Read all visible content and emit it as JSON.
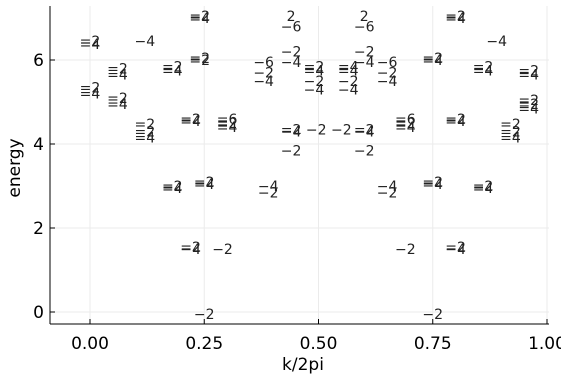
{
  "chart_data": {
    "type": "scatter",
    "title": "",
    "xlabel": "k/2pi",
    "ylabel": "energy",
    "xlim": [
      -0.08,
      1.0
    ],
    "ylim": [
      -0.25,
      7.05
    ],
    "xticks": [
      0.0,
      0.25,
      0.5,
      0.75,
      1.0
    ],
    "xtick_labels": [
      "0.00",
      "0.25",
      "0.50",
      "0.75",
      "1.00"
    ],
    "yticks": [
      0,
      2,
      4,
      6
    ],
    "ytick_labels": [
      "0",
      "2",
      "4",
      "6"
    ],
    "grid": true,
    "legend": "none",
    "marker": "text label (degeneracy) at each eigenvalue",
    "points": [
      {
        "x": 0.0,
        "y": 6.45,
        "label": "=2"
      },
      {
        "x": 0.0,
        "y": 6.38,
        "label": "=4"
      },
      {
        "x": 0.0,
        "y": 5.35,
        "label": "=2"
      },
      {
        "x": 0.0,
        "y": 5.2,
        "label": "=4"
      },
      {
        "x": 0.06,
        "y": 5.8,
        "label": "=2"
      },
      {
        "x": 0.06,
        "y": 5.65,
        "label": "=4"
      },
      {
        "x": 0.06,
        "y": 5.1,
        "label": "=2"
      },
      {
        "x": 0.06,
        "y": 4.95,
        "label": "=4"
      },
      {
        "x": 0.12,
        "y": 6.45,
        "label": "−4"
      },
      {
        "x": 0.12,
        "y": 4.48,
        "label": "=2"
      },
      {
        "x": 0.12,
        "y": 4.3,
        "label": "=2"
      },
      {
        "x": 0.12,
        "y": 4.15,
        "label": "=4"
      },
      {
        "x": 0.18,
        "y": 5.85,
        "label": "=2"
      },
      {
        "x": 0.18,
        "y": 5.75,
        "label": "=4"
      },
      {
        "x": 0.18,
        "y": 3.0,
        "label": "=2"
      },
      {
        "x": 0.18,
        "y": 2.95,
        "label": "=4"
      },
      {
        "x": 0.24,
        "y": 7.05,
        "label": "=2"
      },
      {
        "x": 0.24,
        "y": 7.0,
        "label": "=4"
      },
      {
        "x": 0.24,
        "y": 6.05,
        "label": "=2"
      },
      {
        "x": 0.24,
        "y": 6.0,
        "label": "=2"
      },
      {
        "x": 0.22,
        "y": 4.6,
        "label": "=2"
      },
      {
        "x": 0.22,
        "y": 4.55,
        "label": "=4"
      },
      {
        "x": 0.25,
        "y": 3.1,
        "label": "=2"
      },
      {
        "x": 0.25,
        "y": 3.05,
        "label": "=4"
      },
      {
        "x": 0.22,
        "y": 1.55,
        "label": "=2"
      },
      {
        "x": 0.22,
        "y": 1.5,
        "label": "−4"
      },
      {
        "x": 0.29,
        "y": 1.5,
        "label": "−2"
      },
      {
        "x": 0.25,
        "y": -0.05,
        "label": "−2"
      },
      {
        "x": 0.3,
        "y": 4.6,
        "label": "=6"
      },
      {
        "x": 0.3,
        "y": 4.5,
        "label": "=2"
      },
      {
        "x": 0.3,
        "y": 4.4,
        "label": "=4"
      },
      {
        "x": 0.39,
        "y": 3.0,
        "label": "−4"
      },
      {
        "x": 0.39,
        "y": 2.85,
        "label": "−2"
      },
      {
        "x": 0.38,
        "y": 5.95,
        "label": "−6"
      },
      {
        "x": 0.38,
        "y": 5.7,
        "label": "−2"
      },
      {
        "x": 0.38,
        "y": 5.5,
        "label": "−4"
      },
      {
        "x": 0.44,
        "y": 7.05,
        "label": "2"
      },
      {
        "x": 0.44,
        "y": 6.8,
        "label": "−6"
      },
      {
        "x": 0.44,
        "y": 6.2,
        "label": "−2"
      },
      {
        "x": 0.44,
        "y": 5.95,
        "label": "−4"
      },
      {
        "x": 0.44,
        "y": 4.35,
        "label": "=2"
      },
      {
        "x": 0.44,
        "y": 4.3,
        "label": "−4"
      },
      {
        "x": 0.44,
        "y": 3.85,
        "label": "−2"
      },
      {
        "x": 0.49,
        "y": 5.85,
        "label": "=2"
      },
      {
        "x": 0.49,
        "y": 5.75,
        "label": "=4"
      },
      {
        "x": 0.49,
        "y": 5.5,
        "label": "−2"
      },
      {
        "x": 0.49,
        "y": 5.3,
        "label": "−4"
      },
      {
        "x": 0.495,
        "y": 4.35,
        "label": "−2"
      },
      {
        "x": 0.55,
        "y": 4.35,
        "label": "−2"
      },
      {
        "x": 0.565,
        "y": 5.85,
        "label": "=4"
      },
      {
        "x": 0.565,
        "y": 5.75,
        "label": "=4"
      },
      {
        "x": 0.565,
        "y": 5.5,
        "label": "−2"
      },
      {
        "x": 0.565,
        "y": 5.3,
        "label": "−4"
      },
      {
        "x": 0.6,
        "y": 7.05,
        "label": "2"
      },
      {
        "x": 0.6,
        "y": 6.8,
        "label": "−6"
      },
      {
        "x": 0.6,
        "y": 6.2,
        "label": "−2"
      },
      {
        "x": 0.6,
        "y": 5.95,
        "label": "−4"
      },
      {
        "x": 0.6,
        "y": 4.35,
        "label": "=2"
      },
      {
        "x": 0.6,
        "y": 4.3,
        "label": "−4"
      },
      {
        "x": 0.6,
        "y": 3.85,
        "label": "−2"
      },
      {
        "x": 0.65,
        "y": 5.95,
        "label": "−6"
      },
      {
        "x": 0.65,
        "y": 5.7,
        "label": "−2"
      },
      {
        "x": 0.65,
        "y": 5.5,
        "label": "−4"
      },
      {
        "x": 0.65,
        "y": 3.0,
        "label": "−4"
      },
      {
        "x": 0.65,
        "y": 2.85,
        "label": "−2"
      },
      {
        "x": 0.69,
        "y": 4.6,
        "label": "=6"
      },
      {
        "x": 0.69,
        "y": 4.5,
        "label": "=2"
      },
      {
        "x": 0.69,
        "y": 4.4,
        "label": "=4"
      },
      {
        "x": 0.69,
        "y": 1.5,
        "label": "−2"
      },
      {
        "x": 0.75,
        "y": 6.05,
        "label": "=2"
      },
      {
        "x": 0.75,
        "y": 6.0,
        "label": "=4"
      },
      {
        "x": 0.75,
        "y": 3.1,
        "label": "=2"
      },
      {
        "x": 0.75,
        "y": 3.05,
        "label": "=4"
      },
      {
        "x": 0.75,
        "y": -0.05,
        "label": "−2"
      },
      {
        "x": 0.8,
        "y": 7.05,
        "label": "=2"
      },
      {
        "x": 0.8,
        "y": 7.0,
        "label": "=4"
      },
      {
        "x": 0.8,
        "y": 4.6,
        "label": "=2"
      },
      {
        "x": 0.8,
        "y": 4.55,
        "label": "=4"
      },
      {
        "x": 0.8,
        "y": 1.55,
        "label": "=2"
      },
      {
        "x": 0.8,
        "y": 1.5,
        "label": "−4"
      },
      {
        "x": 0.86,
        "y": 5.85,
        "label": "=2"
      },
      {
        "x": 0.86,
        "y": 5.75,
        "label": "=4"
      },
      {
        "x": 0.86,
        "y": 3.0,
        "label": "=2"
      },
      {
        "x": 0.86,
        "y": 2.95,
        "label": "=4"
      },
      {
        "x": 0.89,
        "y": 6.45,
        "label": "−4"
      },
      {
        "x": 0.92,
        "y": 4.48,
        "label": "=2"
      },
      {
        "x": 0.92,
        "y": 4.3,
        "label": "=2"
      },
      {
        "x": 0.92,
        "y": 4.15,
        "label": "=4"
      },
      {
        "x": 0.96,
        "y": 5.75,
        "label": "=2"
      },
      {
        "x": 0.96,
        "y": 5.65,
        "label": "=4"
      },
      {
        "x": 0.96,
        "y": 5.05,
        "label": "=2"
      },
      {
        "x": 0.96,
        "y": 4.95,
        "label": "=2"
      },
      {
        "x": 0.96,
        "y": 4.85,
        "label": "=4"
      }
    ]
  }
}
